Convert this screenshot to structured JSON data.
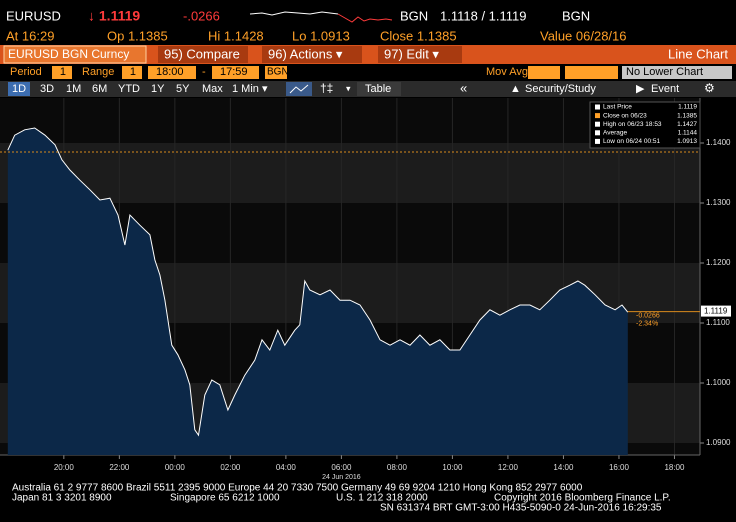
{
  "header": {
    "ticker": "EURUSD",
    "last": "↓ 1.1119",
    "change": "-.0266",
    "bid_source": "BGN",
    "bid_ask": "1.1118 / 1.1119",
    "ask_source": "BGN",
    "time": "At 16:29",
    "open": "Op 1.1385",
    "high": "Hi 1.1428",
    "low": "Lo 1.0913",
    "close": "Close 1.1385",
    "value_date": "Value 06/28/16"
  },
  "menu": {
    "security": "EURUSD BGN Curncy",
    "compare": "95) Compare",
    "actions": "96) Actions ▾",
    "edit": "97) Edit ▾",
    "chart_kind": "Line Chart"
  },
  "settings": {
    "period_label": "Period",
    "period": "1",
    "range_label": "Range",
    "range": "1",
    "start": "18:00",
    "dash": "-",
    "end": "17:59",
    "source": "BGN",
    "mov_avg": "Mov Avg",
    "lower_chart": "No Lower Chart"
  },
  "toolbar": {
    "ranges": [
      "1D",
      "3D",
      "1M",
      "6M",
      "YTD",
      "1Y",
      "5Y",
      "Max"
    ],
    "interval": "1 Min ▾",
    "table": "Table",
    "back": "«",
    "study": "Security/Study",
    "event": "Event"
  },
  "chart_data": {
    "type": "area",
    "color": "#ffffff",
    "fill": "#0c2848",
    "x_date_label": "24 Jun 2016",
    "x": [
      -6.02,
      -5.77,
      -5.41,
      -5.05,
      -4.68,
      -4.32,
      -4.07,
      -3.78,
      -3.42,
      -3.06,
      -2.7,
      -2.34,
      -2.05,
      -1.8,
      -1.62,
      -1.26,
      -0.9,
      -0.72,
      -0.54,
      -0.36,
      -0.11,
      0.11,
      0.36,
      0.54,
      0.72,
      0.85,
      1.08,
      1.33,
      1.62,
      1.91,
      2.16,
      2.52,
      2.88,
      3.14,
      3.42,
      3.71,
      3.96,
      4.32,
      4.5,
      4.68,
      4.86,
      5.23,
      5.59,
      5.95,
      6.31,
      6.67,
      7.03,
      7.39,
      7.75,
      8.11,
      8.47,
      8.83,
      9.19,
      9.55,
      9.91,
      10.27,
      10.63,
      10.99,
      11.35,
      11.71,
      12.07,
      12.43,
      12.79,
      13.15,
      13.51,
      13.87,
      14.23,
      14.52,
      14.77,
      15.14,
      15.5,
      15.86,
      16.11,
      16.32
    ],
    "values": [
      1.1388,
      1.1413,
      1.1422,
      1.1425,
      1.1413,
      1.1397,
      1.1372,
      1.1355,
      1.1338,
      1.1322,
      1.1305,
      1.1308,
      1.128,
      1.123,
      1.128,
      1.1263,
      1.1247,
      1.1205,
      1.118,
      1.1138,
      1.1063,
      1.1047,
      1.1022,
      1.0997,
      1.0922,
      1.0913,
      1.098,
      1.1005,
      1.0997,
      1.0955,
      1.098,
      1.1013,
      1.1038,
      1.1072,
      1.1055,
      1.1088,
      1.1063,
      1.1088,
      1.1097,
      1.117,
      1.1155,
      1.1147,
      1.1155,
      1.1138,
      1.1138,
      1.113,
      1.1105,
      1.1072,
      1.1063,
      1.1072,
      1.1063,
      1.108,
      1.1063,
      1.1072,
      1.1055,
      1.1055,
      1.108,
      1.1105,
      1.1122,
      1.1113,
      1.1122,
      1.113,
      1.113,
      1.1122,
      1.1138,
      1.1155,
      1.1163,
      1.117,
      1.1163,
      1.1147,
      1.113,
      1.1122,
      1.113,
      1.1118
    ],
    "xlim": [
      -6.3,
      18.92
    ],
    "ylim": [
      1.088,
      1.1475
    ],
    "xticks": [
      {
        "value": -4,
        "label": "20:00"
      },
      {
        "value": -2,
        "label": "22:00"
      },
      {
        "value": 0,
        "label": "00:00"
      },
      {
        "value": 2,
        "label": "02:00"
      },
      {
        "value": 4,
        "label": "04:00"
      },
      {
        "value": 6,
        "label": "06:00"
      },
      {
        "value": 8,
        "label": "08:00"
      },
      {
        "value": 10,
        "label": "10:00"
      },
      {
        "value": 12,
        "label": "12:00"
      },
      {
        "value": 14,
        "label": "14:00"
      },
      {
        "value": 16,
        "label": "16:00"
      },
      {
        "value": 18,
        "label": "18:00"
      }
    ],
    "yticks": [
      {
        "value": 1.09,
        "label": "1.0900"
      },
      {
        "value": 1.1,
        "label": "1.1000"
      },
      {
        "value": 1.11,
        "label": "1.1100"
      },
      {
        "value": 1.12,
        "label": "1.1200"
      },
      {
        "value": 1.13,
        "label": "1.1300"
      },
      {
        "value": 1.14,
        "label": "1.1400"
      }
    ],
    "close_line": {
      "value": 1.1385,
      "color": "#d98a1c"
    },
    "last_price": {
      "value": 1.1119,
      "label": "1.1119"
    },
    "annotations": [
      "-0.0266",
      "-2.34%"
    ],
    "legend": [
      {
        "name": "Last Price",
        "value": "1.1119",
        "color": "#ffffff"
      },
      {
        "name": "Close on 06/23",
        "value": "1.1385",
        "color": "#ffa028"
      },
      {
        "name": "High on 06/23 18:53",
        "value": "1.1427",
        "color": "#ffffff"
      },
      {
        "name": "Average",
        "value": "1.1144",
        "color": "#ffffff"
      },
      {
        "name": "Low on 06/24 00:51",
        "value": "1.0913",
        "color": "#ffffff"
      }
    ]
  },
  "footer": {
    "line1": "Australia 61 2 9777 8600 Brazil 5511 2395 9000 Europe 44 20 7330 7500 Germany 49 69 9204 1210 Hong Kong 852 2977 6000",
    "japan": "Japan 81 3 3201 8900",
    "singapore": "Singapore 65 6212 1000",
    "us": "U.S. 1 212 318 2000",
    "copyright": "Copyright 2016 Bloomberg Finance L.P.",
    "line3": "SN 631374 BRT  GMT-3:00 H435-5090-0 24-Jun-2016 16:29:35"
  }
}
